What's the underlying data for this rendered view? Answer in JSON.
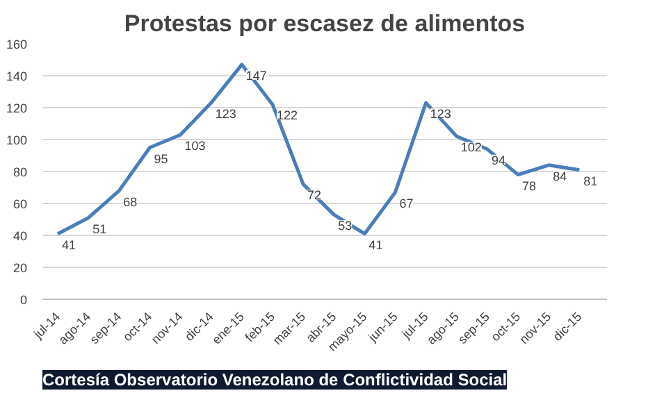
{
  "chart_data": {
    "type": "line",
    "title": "Protestas por escasez de alimentos",
    "categories": [
      "jul-14",
      "ago-14",
      "sep-14",
      "oct-14",
      "nov-14",
      "dic-14",
      "ene-15",
      "feb-15",
      "mar-15",
      "abr-15",
      "mayo-15",
      "jun-15",
      "jul-15",
      "ago-15",
      "sep-15",
      "oct-15",
      "nov-15",
      "dic-15"
    ],
    "series": [
      {
        "color": "#4a7ebb",
        "values": [
          41,
          51,
          68,
          95,
          103,
          123,
          147,
          122,
          72,
          53,
          41,
          67,
          123,
          102,
          94,
          78,
          84,
          81
        ]
      }
    ],
    "ylim": [
      0,
      160
    ],
    "yticks": [
      0,
      20,
      40,
      60,
      80,
      100,
      120,
      140,
      160
    ],
    "grid": "y",
    "data_labels": true,
    "marker": "none",
    "line_style": "solid",
    "annotations": [
      "Cortesía Observatorio Venezolano de Conflictividad Social"
    ]
  }
}
